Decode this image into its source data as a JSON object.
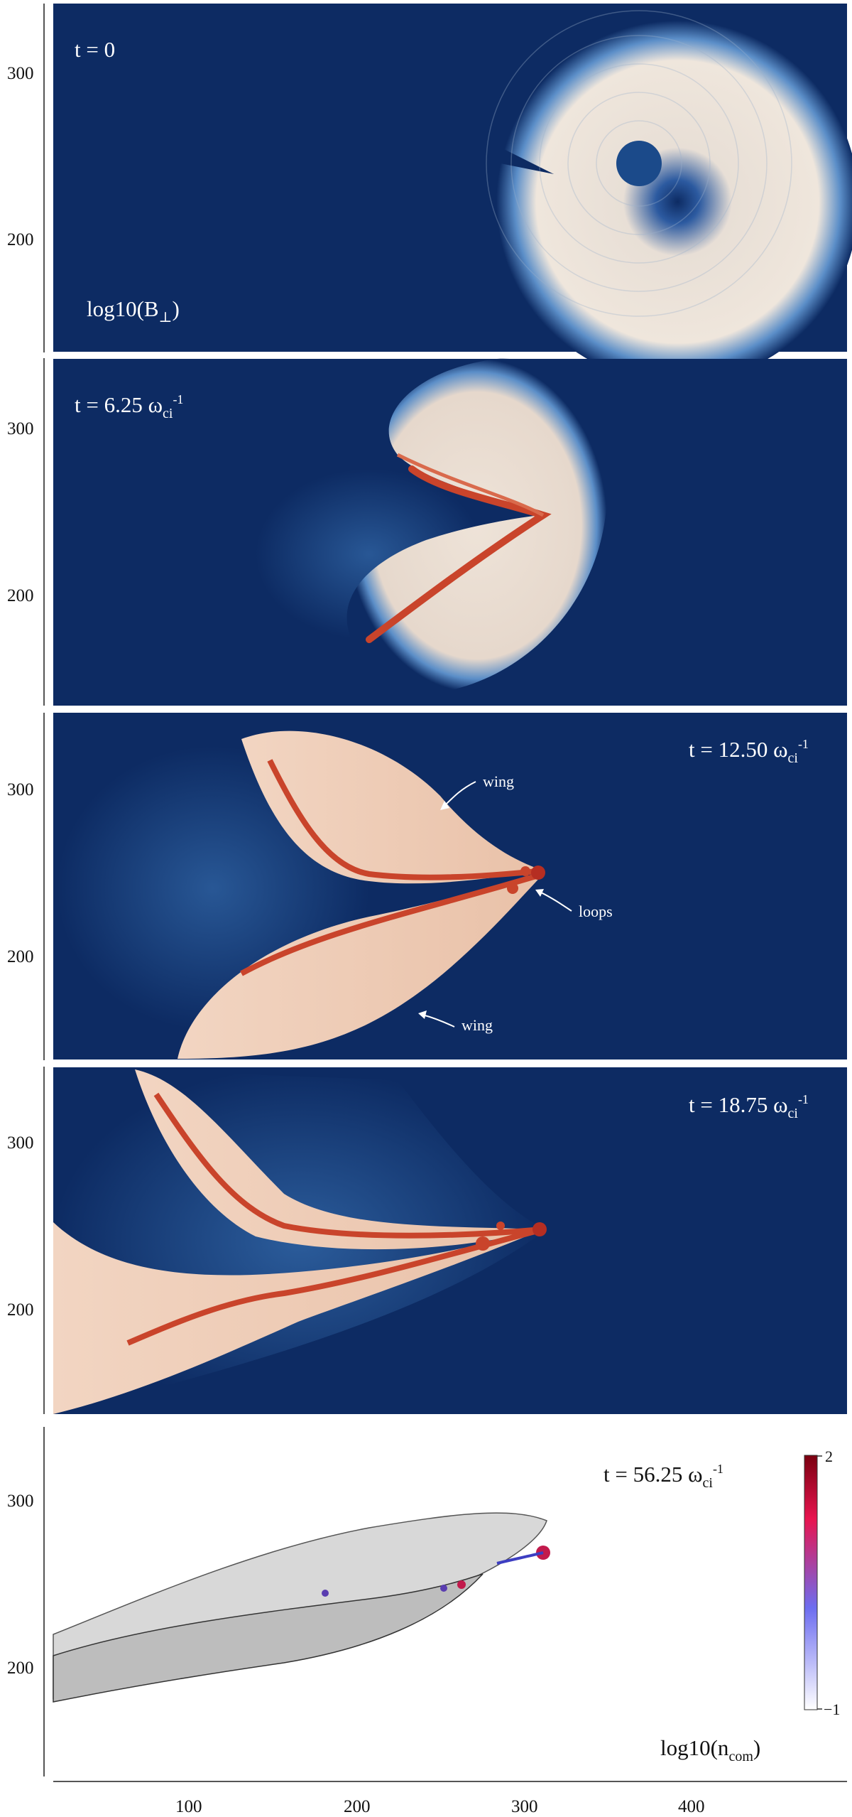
{
  "panels": [
    {
      "time_label": "t = 0",
      "field_label": "log10(B",
      "field_sub": "⊥",
      "field_close": ")"
    },
    {
      "time_label": "t = 6.25 ω",
      "sub": "ci",
      "sup": "-1"
    },
    {
      "time_label": "t = 12.50 ω",
      "sub": "ci",
      "sup": "-1",
      "annotations": {
        "wing_top": "wing",
        "loops": "loops",
        "wing_bottom": "wing"
      }
    },
    {
      "time_label": "t = 18.75 ω",
      "sub": "ci",
      "sup": "-1"
    },
    {
      "time_label": "t = 56.25 ω",
      "sub": "ci",
      "sup": "-1",
      "field_label": "log10(n",
      "field_sub": "com",
      "field_close": ")"
    }
  ],
  "y_ticks": [
    "300",
    "200"
  ],
  "x_ticks": [
    "100",
    "200",
    "300",
    "400"
  ],
  "colorbar": {
    "max_label": "2",
    "min_label": "−1",
    "colors": [
      "#ffffff",
      "#6d6df0",
      "#e8144f",
      "#7a0010"
    ]
  },
  "colors": {
    "background": "#0d2b63",
    "accent": "#d0402a"
  }
}
